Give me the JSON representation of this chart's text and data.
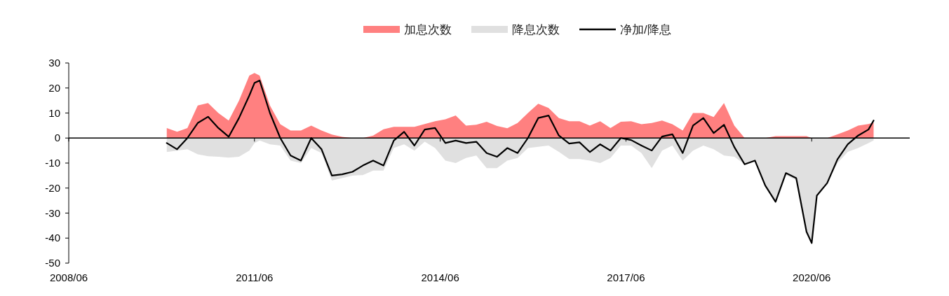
{
  "chart_data": {
    "type": "area",
    "x": [
      "2010-01",
      "2010-03",
      "2010-05",
      "2010-07",
      "2010-09",
      "2010-11",
      "2011-01",
      "2011-03",
      "2011-05",
      "2011-06",
      "2011-07",
      "2011-09",
      "2011-11",
      "2012-01",
      "2012-03",
      "2012-05",
      "2012-07",
      "2012-09",
      "2012-11",
      "2013-01",
      "2013-03",
      "2013-05",
      "2013-07",
      "2013-09",
      "2013-11",
      "2014-01",
      "2014-03",
      "2014-05",
      "2014-07",
      "2014-09",
      "2014-11",
      "2015-01",
      "2015-03",
      "2015-05",
      "2015-07",
      "2015-09",
      "2015-11",
      "2016-01",
      "2016-03",
      "2016-05",
      "2016-07",
      "2016-09",
      "2016-11",
      "2017-01",
      "2017-03",
      "2017-05",
      "2017-07",
      "2017-09",
      "2017-11",
      "2018-01",
      "2018-03",
      "2018-05",
      "2018-07",
      "2018-09",
      "2018-11",
      "2019-01",
      "2019-03",
      "2019-05",
      "2019-07",
      "2019-09",
      "2019-11",
      "2020-01",
      "2020-03",
      "2020-05",
      "2020-06",
      "2020-07",
      "2020-09",
      "2020-11",
      "2021-01",
      "2021-03",
      "2021-05",
      "2021-06"
    ],
    "series": [
      {
        "name": "加息次数",
        "color": "#ff8080",
        "values": [
          4,
          2.5,
          4,
          13,
          14,
          10,
          7,
          15,
          25,
          26,
          25,
          13,
          5.5,
          3,
          3,
          5,
          3,
          1.4,
          0.5,
          0,
          0,
          1,
          3.5,
          4.5,
          4.5,
          4.5,
          5.6,
          6.7,
          7.5,
          9,
          5,
          5.3,
          6.5,
          4.8,
          3.9,
          6,
          10,
          13.7,
          12,
          8,
          6.7,
          6.7,
          5,
          6.7,
          4,
          6.5,
          6.7,
          5.5,
          6,
          7,
          5.5,
          3,
          10,
          10,
          8.4,
          14,
          5,
          0,
          0,
          0,
          0.8,
          0.8,
          0.8,
          0.8,
          0,
          0,
          0,
          1.5,
          3,
          5,
          5.6,
          6.2
        ]
      },
      {
        "name": "降息次数",
        "color": "#e0e0e0",
        "values": [
          -5.6,
          -5,
          -4.5,
          -6.5,
          -7.3,
          -7.5,
          -7.8,
          -7.5,
          -5,
          -2,
          -1,
          -2.5,
          -3,
          -9,
          -10,
          -4,
          -6,
          -17,
          -16,
          -15,
          -14.8,
          -13,
          -13,
          -4,
          -2.5,
          -5,
          -1.5,
          -4,
          -9,
          -10,
          -8,
          -7,
          -12,
          -12,
          -9,
          -8,
          -4,
          -3.5,
          -3,
          -5.5,
          -8.4,
          -8.4,
          -9,
          -10,
          -8,
          -3,
          -3,
          -6,
          -12,
          -5,
          -3,
          -9,
          -5,
          -3,
          -4.5,
          -7,
          -7.5,
          -10.5,
          -9,
          -19,
          -26,
          -14.8,
          -16.8,
          -38,
          -42,
          -23,
          -18,
          -10,
          -5.5,
          -4,
          -2,
          -1
        ]
      },
      {
        "name": "净加/降息",
        "type": "line",
        "color": "#000000",
        "values": [
          -2,
          -4.5,
          0,
          6,
          8.5,
          4,
          0.5,
          8,
          17,
          22,
          23,
          10,
          0,
          -7,
          -9,
          0,
          -4.5,
          -15,
          -14.5,
          -13.5,
          -11,
          -9,
          -11,
          -1,
          2.5,
          -3,
          3.4,
          4,
          -2,
          -1,
          -2,
          -1.5,
          -6,
          -7.5,
          -4,
          -6,
          0,
          8,
          9,
          1,
          -2.2,
          -1.7,
          -5.6,
          -2.5,
          -5,
          0,
          -0.8,
          -3,
          -5,
          0.6,
          1.5,
          -6,
          5,
          8,
          2,
          5.3,
          -3.6,
          -10.5,
          -9,
          -19,
          -25.5,
          -14,
          -16,
          -37.5,
          -42,
          -23,
          -18,
          -8.5,
          -2.5,
          1,
          3.4,
          7
        ]
      }
    ],
    "xlim": [
      "2008-06",
      "2022-01"
    ],
    "xticks": [
      {
        "value": "2008-06",
        "label": "2008/06"
      },
      {
        "value": "2011-06",
        "label": "2011/06"
      },
      {
        "value": "2014-06",
        "label": "2014/06"
      },
      {
        "value": "2017-06",
        "label": "2017/06"
      },
      {
        "value": "2020-06",
        "label": "2020/06"
      }
    ],
    "ylim": [
      -50,
      30
    ],
    "yticks": [
      -50,
      -40,
      -30,
      -20,
      -10,
      0,
      10,
      20,
      30
    ],
    "legend": "top"
  }
}
